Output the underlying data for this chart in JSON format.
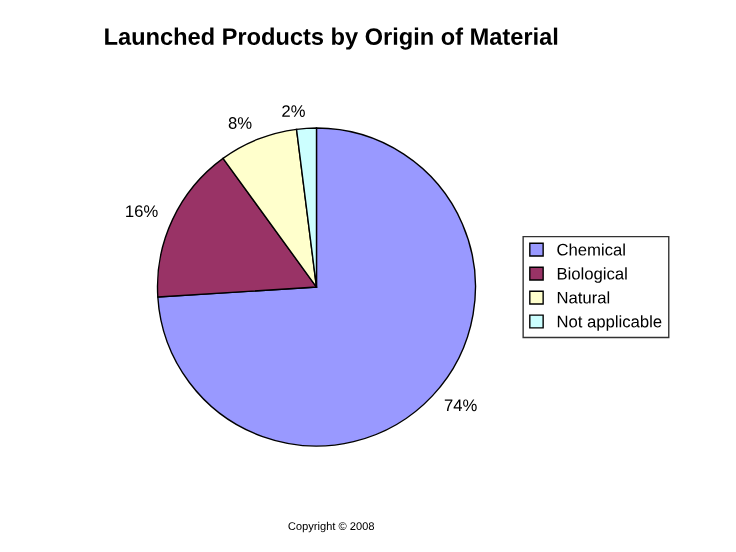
{
  "chart_data": {
    "type": "pie",
    "title": "Launched Products by Origin of Material",
    "categories": [
      "Chemical",
      "Biological",
      "Natural",
      "Not applicable"
    ],
    "values": [
      74,
      16,
      8,
      2
    ],
    "colors": [
      "#9999ff",
      "#993366",
      "#ffffcc",
      "#ccffff"
    ],
    "value_labels": [
      "74%",
      "16%",
      "8%",
      "2%"
    ],
    "legend": "right",
    "annotations": [
      "Copyright © 2008"
    ]
  }
}
